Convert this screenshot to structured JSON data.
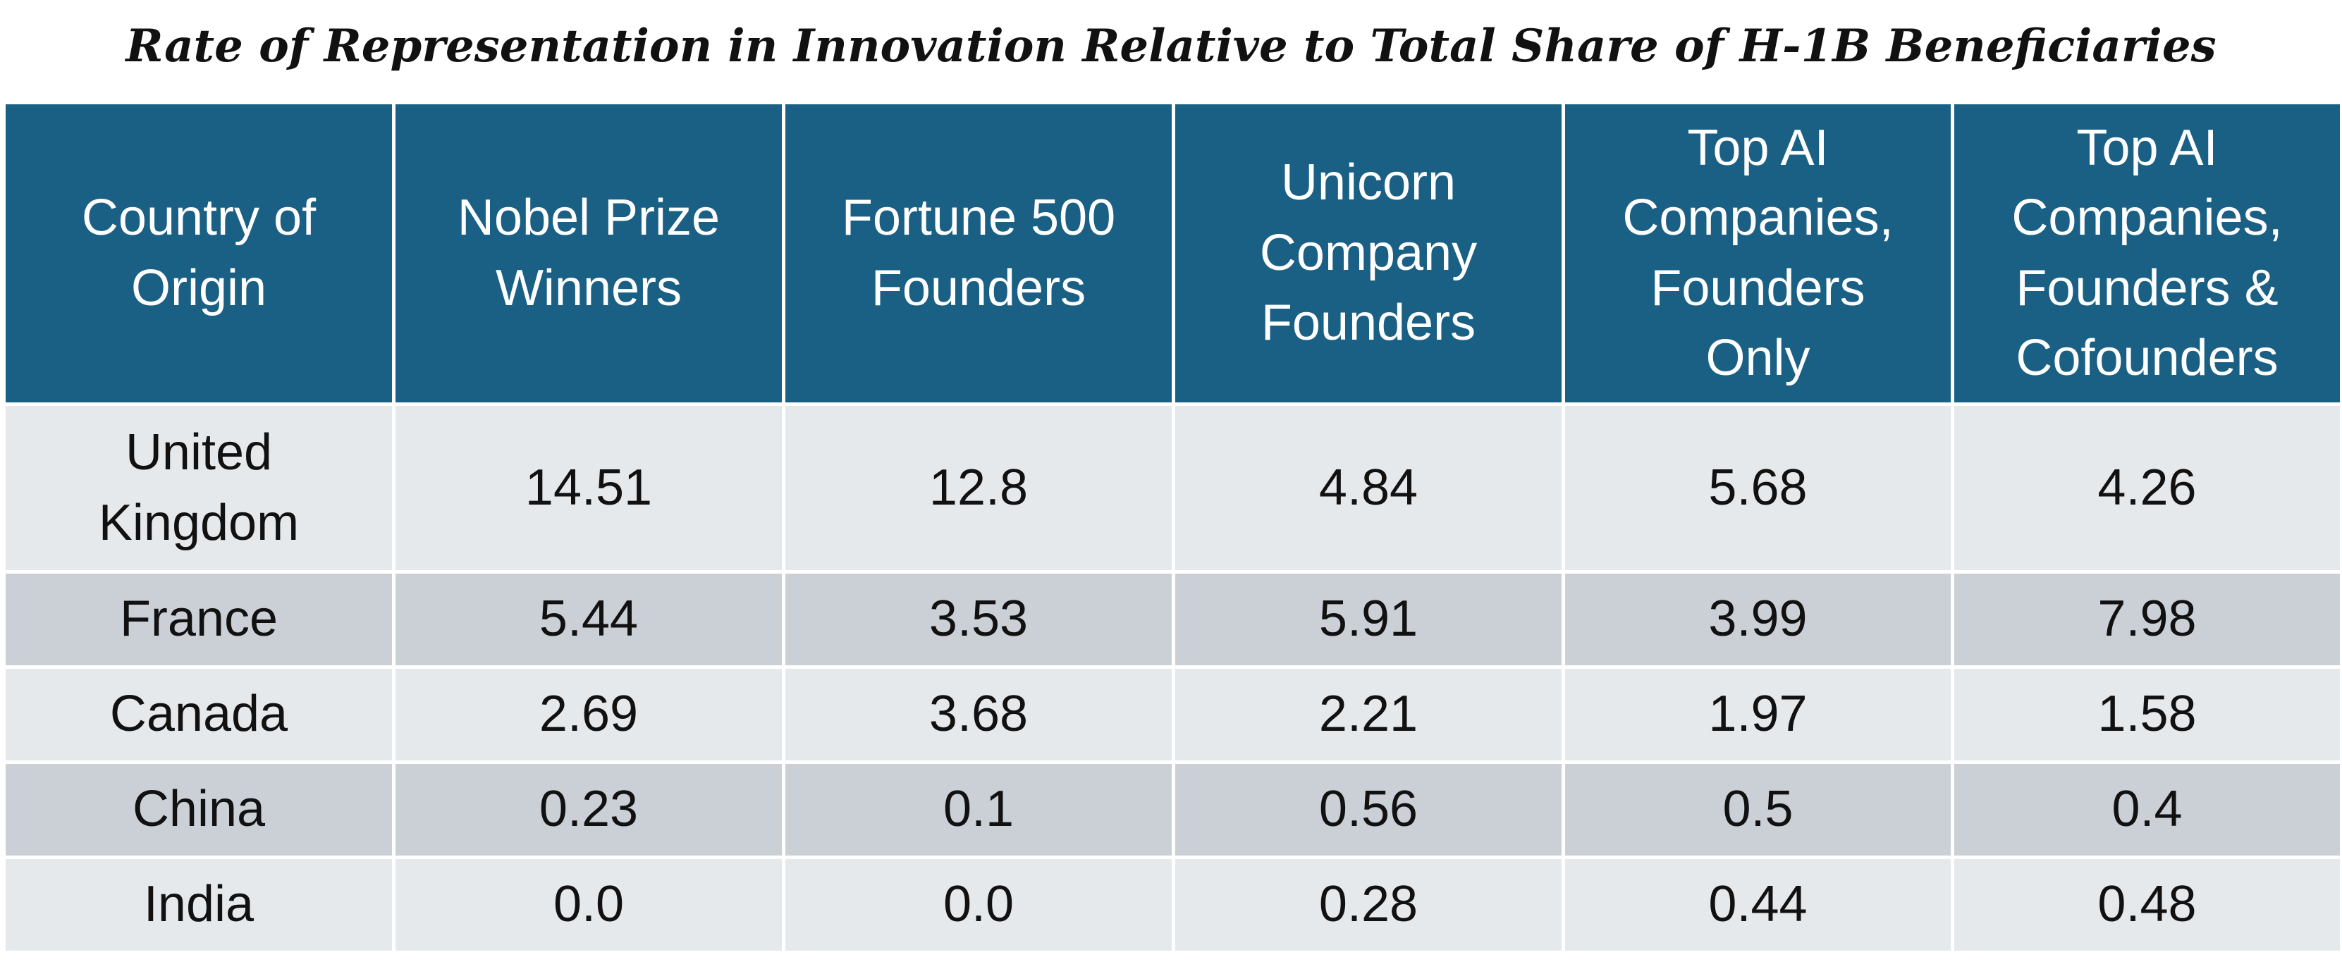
{
  "title": "Rate of Representation in Innovation Relative to Total Share of H-1B Beneficiaries",
  "colors": {
    "header_bg": "#1a5f84",
    "header_text": "#ffffff",
    "row_light": "#e6e9ec",
    "row_dark": "#cbd0d7"
  },
  "chart_data": {
    "type": "table",
    "title": "Rate of Representation in Innovation Relative to Total Share of H-1B Beneficiaries",
    "columns": [
      "Country of Origin",
      "Nobel Prize Winners",
      "Fortune 500 Founders",
      "Unicorn Company Founders",
      "Top AI Companies, Founders Only",
      "Top AI Companies, Founders & Cofounders"
    ],
    "rows": [
      [
        "United Kingdom",
        "14.51",
        "12.8",
        "4.84",
        "5.68",
        "4.26"
      ],
      [
        "France",
        "5.44",
        "3.53",
        "5.91",
        "3.99",
        "7.98"
      ],
      [
        "Canada",
        "2.69",
        "3.68",
        "2.21",
        "1.97",
        "1.58"
      ],
      [
        "China",
        "0.23",
        "0.1",
        "0.56",
        "0.5",
        "0.4"
      ],
      [
        "India",
        "0.0",
        "0.0",
        "0.28",
        "0.44",
        "0.48"
      ]
    ]
  }
}
